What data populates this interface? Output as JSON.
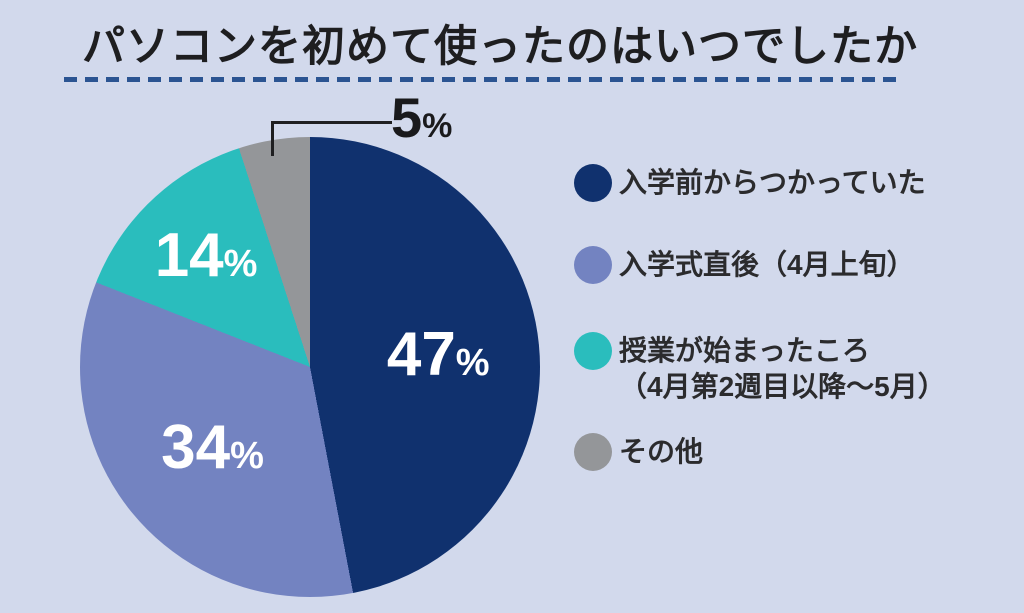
{
  "background_color": "#D2D9EC",
  "title": {
    "text": "パソコンを初めて使ったのはいつでしたか",
    "underline_color": "#2B5492"
  },
  "legend": {
    "items": [
      {
        "label": "入学前からつかっていた",
        "lines": [
          "入学前からつかっていた"
        ],
        "color": "#10316E"
      },
      {
        "label": "入学式直後（4月上旬）",
        "lines": [
          "入学式直後（4月上旬）"
        ],
        "color": "#7383C1"
      },
      {
        "label": "授業が始まったころ（4月第2週目以降～5月）",
        "lines": [
          "授業が始まったころ",
          "（4月第2週目以降～5月）"
        ],
        "color": "#2ABDBD"
      },
      {
        "label": "その他",
        "lines": [
          "その他"
        ],
        "color": "#949699"
      }
    ]
  },
  "chart_data": {
    "type": "pie",
    "title": "パソコンを初めて使ったのはいつでしたか",
    "unit": "%",
    "start_angle_deg": 0,
    "direction": "clockwise",
    "legend_position": "right",
    "categories": [
      "入学前からつかっていた",
      "入学式直後（4月上旬）",
      "授業が始まったころ（4月第2週目以降～5月）",
      "その他"
    ],
    "values": [
      47,
      34,
      14,
      5
    ],
    "colors": [
      "#10316E",
      "#7383C1",
      "#2ABDBD",
      "#949699"
    ],
    "inside_label_color": "#FFFFFF",
    "outside_label_color": "#1A1A1C",
    "outside_label_indices": [
      3
    ]
  }
}
